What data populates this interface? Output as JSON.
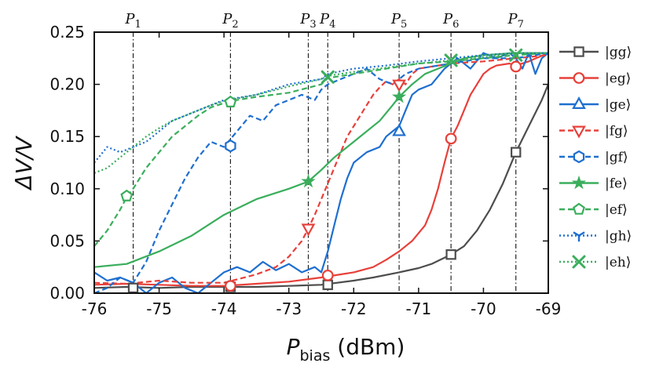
{
  "chart_data": {
    "type": "line",
    "xlabel": "P",
    "xlabel_sub": "bias",
    "xlabel_unit": " (dBm)",
    "ylabel": "ΔV/V",
    "xlim": [
      -76,
      -69
    ],
    "ylim": [
      0,
      0.25
    ],
    "x_ticks": [
      -76,
      -75,
      -74,
      -73,
      -72,
      -71,
      -70,
      -69
    ],
    "x_tick_labels": [
      "-76",
      "-75",
      "-74",
      "-73",
      "-72",
      "-71",
      "-70",
      "-69"
    ],
    "y_ticks": [
      0,
      0.05,
      0.1,
      0.15,
      0.2,
      0.25
    ],
    "y_tick_labels": [
      "0.00",
      "0.05",
      "0.10",
      "0.15",
      "0.20",
      "0.25"
    ],
    "grid": false,
    "legend_position": "right",
    "vlines": [
      {
        "label": "P",
        "sub": "1",
        "x": -75.4
      },
      {
        "label": "P",
        "sub": "2",
        "x": -73.9
      },
      {
        "label": "P",
        "sub": "3",
        "x": -72.7
      },
      {
        "label": "P",
        "sub": "4",
        "x": -72.4
      },
      {
        "label": "P",
        "sub": "5",
        "x": -71.3
      },
      {
        "label": "P",
        "sub": "6",
        "x": -70.5
      },
      {
        "label": "P",
        "sub": "7",
        "x": -69.5
      }
    ],
    "series": [
      {
        "name": "|gg⟩",
        "color": "#4d4d4d",
        "dash": "solid",
        "marker": "square",
        "x": [
          -76,
          -75.5,
          -75,
          -74.5,
          -74,
          -73.5,
          -73,
          -72.5,
          -72,
          -71.7,
          -71.3,
          -71,
          -70.8,
          -70.5,
          -70.3,
          -70.1,
          -69.9,
          -69.7,
          -69.5,
          -69.3,
          -69.1,
          -69
        ],
        "y": [
          0.005,
          0.006,
          0.005,
          0.006,
          0.006,
          0.006,
          0.007,
          0.008,
          0.012,
          0.015,
          0.02,
          0.024,
          0.028,
          0.037,
          0.045,
          0.06,
          0.08,
          0.105,
          0.135,
          0.16,
          0.185,
          0.2
        ],
        "markers_x": [
          -75.4,
          -73.9,
          -72.4,
          -70.5,
          -69.5
        ],
        "markers_y": [
          0.005,
          0.006,
          0.008,
          0.037,
          0.135
        ]
      },
      {
        "name": "|eg⟩",
        "color": "#e8403a",
        "dash": "solid",
        "marker": "circle",
        "x": [
          -76,
          -75.5,
          -75,
          -74.5,
          -74,
          -73.5,
          -73,
          -72.5,
          -72.2,
          -72,
          -71.7,
          -71.5,
          -71.3,
          -71.1,
          -70.9,
          -70.8,
          -70.7,
          -70.6,
          -70.5,
          -70.4,
          -70.3,
          -70.2,
          -70.1,
          -70,
          -69.9,
          -69.8,
          -69.6,
          -69.5,
          -69.3,
          -69
        ],
        "y": [
          0.008,
          0.009,
          0.008,
          0.007,
          0.007,
          0.009,
          0.011,
          0.015,
          0.018,
          0.02,
          0.025,
          0.032,
          0.04,
          0.05,
          0.065,
          0.08,
          0.1,
          0.125,
          0.148,
          0.16,
          0.175,
          0.19,
          0.2,
          0.21,
          0.215,
          0.218,
          0.22,
          0.218,
          0.222,
          0.23
        ],
        "markers_x": [
          -73.9,
          -72.4,
          -70.5,
          -69.5
        ],
        "markers_y": [
          0.007,
          0.017,
          0.148,
          0.217
        ]
      },
      {
        "name": "|ge⟩",
        "color": "#1e6fd0",
        "dash": "solid",
        "marker": "triangle-up",
        "x": [
          -76,
          -75.8,
          -75.6,
          -75.4,
          -75.2,
          -75,
          -74.8,
          -74.6,
          -74.4,
          -74.2,
          -74,
          -73.8,
          -73.6,
          -73.4,
          -73.2,
          -73,
          -72.8,
          -72.6,
          -72.5,
          -72.4,
          -72.3,
          -72.2,
          -72.1,
          -72,
          -71.8,
          -71.6,
          -71.5,
          -71.4,
          -71.3,
          -71.2,
          -71.1,
          -71,
          -70.8,
          -70.6,
          -70.4,
          -70.2,
          -70,
          -69.8,
          -69.6,
          -69.5,
          -69.4,
          -69.3,
          -69.2,
          -69.1,
          -69
        ],
        "y": [
          0.02,
          0.012,
          0.015,
          0.01,
          0.0,
          0.01,
          0.015,
          0.005,
          0.0,
          0.01,
          0.02,
          0.025,
          0.02,
          0.03,
          0.022,
          0.028,
          0.02,
          0.025,
          0.02,
          0.04,
          0.065,
          0.09,
          0.11,
          0.125,
          0.135,
          0.14,
          0.15,
          0.155,
          0.16,
          0.175,
          0.19,
          0.195,
          0.2,
          0.215,
          0.225,
          0.215,
          0.23,
          0.225,
          0.23,
          0.225,
          0.215,
          0.23,
          0.21,
          0.225,
          0.23
        ],
        "markers_x": [
          -71.3
        ],
        "markers_y": [
          0.155
        ]
      },
      {
        "name": "|fg⟩",
        "color": "#e8403a",
        "dash": "dashed",
        "marker": "triangle-down",
        "x": [
          -76,
          -75.5,
          -75,
          -74.5,
          -74,
          -73.5,
          -73.2,
          -73,
          -72.8,
          -72.7,
          -72.6,
          -72.5,
          -72.4,
          -72.3,
          -72.2,
          -72.1,
          -72,
          -71.9,
          -71.8,
          -71.7,
          -71.6,
          -71.5,
          -71.4,
          -71.3,
          -71.2,
          -71.1,
          -71,
          -70.5,
          -70,
          -69.5,
          -69
        ],
        "y": [
          0.01,
          0.009,
          0.012,
          0.01,
          0.01,
          0.018,
          0.025,
          0.035,
          0.05,
          0.062,
          0.075,
          0.09,
          0.105,
          0.12,
          0.135,
          0.15,
          0.16,
          0.17,
          0.18,
          0.19,
          0.197,
          0.203,
          0.2,
          0.205,
          0.2,
          0.21,
          0.215,
          0.22,
          0.222,
          0.225,
          0.228
        ],
        "markers_x": [
          -72.7,
          -71.3
        ],
        "markers_y": [
          0.062,
          0.2
        ]
      },
      {
        "name": "|gf⟩",
        "color": "#1e6fd0",
        "dash": "dashed",
        "marker": "hexagon",
        "x": [
          -76,
          -75.8,
          -75.6,
          -75.4,
          -75.2,
          -75,
          -74.8,
          -74.6,
          -74.4,
          -74.2,
          -74,
          -73.8,
          -73.6,
          -73.4,
          -73.2,
          -73,
          -72.8,
          -72.6,
          -72.5,
          -72.4,
          -72.2,
          -72,
          -71.8,
          -71.6,
          -71.4,
          -71.2,
          -71,
          -70.5,
          -70,
          -69.5,
          -69
        ],
        "y": [
          0.0,
          0.005,
          0.015,
          0.01,
          0.03,
          0.06,
          0.085,
          0.11,
          0.13,
          0.145,
          0.14,
          0.155,
          0.17,
          0.165,
          0.18,
          0.185,
          0.19,
          0.185,
          0.195,
          0.2,
          0.205,
          0.21,
          0.215,
          0.205,
          0.2,
          0.21,
          0.215,
          0.22,
          0.225,
          0.225,
          0.23
        ],
        "markers_x": [
          -73.9
        ],
        "markers_y": [
          0.141
        ]
      },
      {
        "name": "|fe⟩",
        "color": "#3aae5c",
        "dash": "solid",
        "marker": "star",
        "x": [
          -76,
          -75.5,
          -75,
          -74.5,
          -74,
          -73.5,
          -73,
          -72.7,
          -72.5,
          -72.3,
          -72,
          -71.8,
          -71.6,
          -71.4,
          -71.3,
          -71.1,
          -70.9,
          -70.7,
          -70.5,
          -70.3,
          -70,
          -69.5,
          -69
        ],
        "y": [
          0.025,
          0.028,
          0.04,
          0.055,
          0.075,
          0.09,
          0.1,
          0.107,
          0.118,
          0.13,
          0.145,
          0.155,
          0.165,
          0.18,
          0.188,
          0.2,
          0.21,
          0.215,
          0.22,
          0.225,
          0.228,
          0.23,
          0.23
        ],
        "markers_x": [
          -72.7,
          -71.3
        ],
        "markers_y": [
          0.107,
          0.188
        ]
      },
      {
        "name": "|ef⟩",
        "color": "#3aae5c",
        "dash": "dashed",
        "marker": "pentagon",
        "x": [
          -76,
          -75.8,
          -75.6,
          -75.5,
          -75.4,
          -75.2,
          -75,
          -74.8,
          -74.6,
          -74.4,
          -74.2,
          -74,
          -73.8,
          -73.5,
          -73,
          -72.5,
          -72.4,
          -72,
          -71.5,
          -71,
          -70.5,
          -70,
          -69.5,
          -69
        ],
        "y": [
          0.045,
          0.06,
          0.08,
          0.092,
          0.1,
          0.12,
          0.135,
          0.15,
          0.16,
          0.17,
          0.178,
          0.182,
          0.185,
          0.188,
          0.192,
          0.2,
          0.206,
          0.21,
          0.215,
          0.22,
          0.222,
          0.225,
          0.228,
          0.23
        ],
        "markers_x": [
          -75.5,
          -73.9
        ],
        "markers_y": [
          0.093,
          0.183
        ]
      },
      {
        "name": "|gh⟩",
        "color": "#1e6fd0",
        "dash": "dotted",
        "marker": "tri-down",
        "x": [
          -76,
          -75.8,
          -75.6,
          -75.4,
          -75.2,
          -75,
          -74.8,
          -74.6,
          -74.4,
          -74.2,
          -74,
          -73.5,
          -73,
          -72.5,
          -72.4,
          -72,
          -71.5,
          -71,
          -70.5,
          -70,
          -69.5,
          -69
        ],
        "y": [
          0.125,
          0.14,
          0.135,
          0.14,
          0.145,
          0.155,
          0.165,
          0.17,
          0.175,
          0.18,
          0.185,
          0.19,
          0.2,
          0.205,
          0.21,
          0.215,
          0.218,
          0.222,
          0.225,
          0.228,
          0.23,
          0.23
        ],
        "markers_x": [],
        "markers_y": []
      },
      {
        "name": "|eh⟩",
        "color": "#3aae5c",
        "dash": "dotted",
        "marker": "x",
        "x": [
          -76,
          -75.8,
          -75.6,
          -75.4,
          -75.2,
          -75,
          -74.8,
          -74.6,
          -74.4,
          -74.2,
          -74,
          -73.5,
          -73,
          -72.5,
          -72.4,
          -72,
          -71.5,
          -71,
          -70.5,
          -70,
          -69.5,
          -69
        ],
        "y": [
          0.115,
          0.12,
          0.13,
          0.14,
          0.15,
          0.158,
          0.165,
          0.17,
          0.175,
          0.18,
          0.184,
          0.19,
          0.198,
          0.205,
          0.208,
          0.212,
          0.216,
          0.22,
          0.223,
          0.226,
          0.23,
          0.23
        ],
        "markers_x": [
          -72.4,
          -70.5,
          -69.5
        ],
        "markers_y": [
          0.207,
          0.223,
          0.228
        ]
      }
    ]
  }
}
